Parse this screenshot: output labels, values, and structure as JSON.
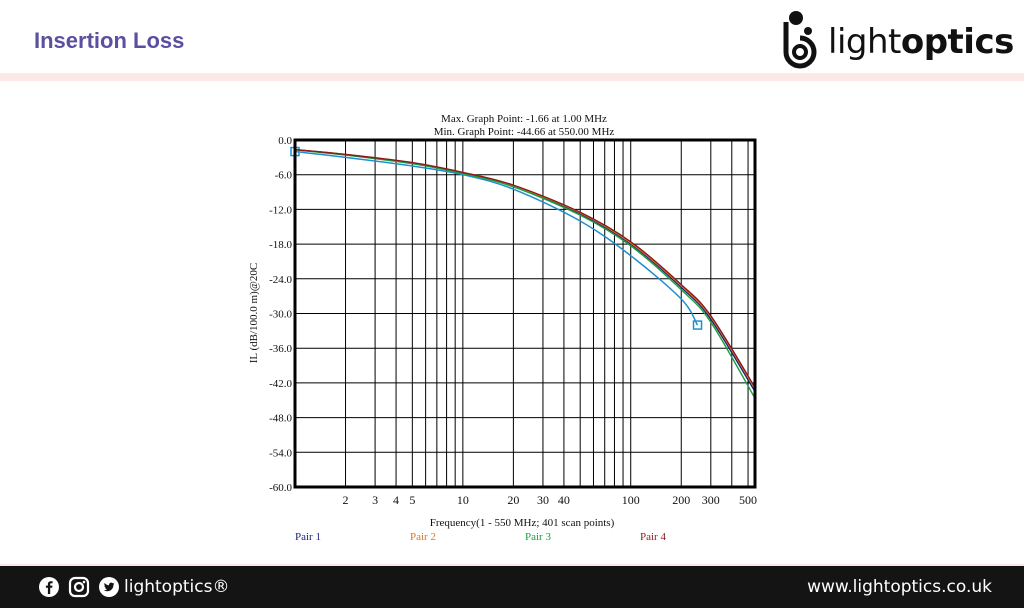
{
  "header": {
    "title": "Insertion Loss",
    "logo_text_light": "light",
    "logo_text_bold": "optics",
    "accent_color": "#5a4fa0"
  },
  "footer": {
    "brand": "lightoptics®",
    "url": "www.lightoptics.co.uk",
    "icons": [
      "facebook-icon",
      "instagram-icon",
      "twitter-icon"
    ]
  },
  "chart_data": {
    "type": "line",
    "x_scale": "log",
    "max_point_text": "Max. Graph Point: -1.66 at 1.00 MHz",
    "min_point_text": "Min. Graph Point: -44.66 at 550.00 MHz",
    "xlabel": "Frequency(1 - 550 MHz; 401 scan points)",
    "ylabel": "IL (dB/100.0 m)@20C",
    "xlim": [
      1,
      550
    ],
    "ylim": [
      -60,
      0
    ],
    "y_ticks": [
      "0.0",
      "-6.0",
      "-12.0",
      "-18.0",
      "-24.0",
      "-30.0",
      "-36.0",
      "-42.0",
      "-48.0",
      "-54.0",
      "-60.0"
    ],
    "x_ticks": [
      {
        "value": 2,
        "label": "2"
      },
      {
        "value": 3,
        "label": "3"
      },
      {
        "value": 4,
        "label": "4"
      },
      {
        "value": 5,
        "label": "5"
      },
      {
        "value": 10,
        "label": "10"
      },
      {
        "value": 20,
        "label": "20"
      },
      {
        "value": 30,
        "label": "30"
      },
      {
        "value": 40,
        "label": "40"
      },
      {
        "value": 100,
        "label": "100"
      },
      {
        "value": 200,
        "label": "200"
      },
      {
        "value": 300,
        "label": "300"
      },
      {
        "value": 500,
        "label": "500"
      }
    ],
    "grid": true,
    "legend_position": "bottom",
    "limit_line": {
      "color": "#1e90d0",
      "x": [
        1,
        2,
        5,
        10,
        20,
        50,
        100,
        200,
        250
      ],
      "y": [
        -2.0,
        -3.0,
        -4.5,
        -6.0,
        -8.5,
        -14.0,
        -20.0,
        -27.5,
        -32.0
      ]
    },
    "series": [
      {
        "name": "Pair 1",
        "color": "#1a237e",
        "x": [
          1,
          2,
          5,
          10,
          20,
          50,
          100,
          200,
          300,
          550
        ],
        "y": [
          -1.66,
          -2.5,
          -4.0,
          -5.7,
          -8.0,
          -12.8,
          -18.0,
          -25.5,
          -31.0,
          -43.5
        ]
      },
      {
        "name": "Pair 2",
        "color": "#e07820",
        "x": [
          1,
          2,
          5,
          10,
          20,
          50,
          100,
          200,
          300,
          550
        ],
        "y": [
          -1.7,
          -2.5,
          -4.0,
          -5.6,
          -7.9,
          -12.6,
          -17.8,
          -25.2,
          -30.6,
          -43.0
        ]
      },
      {
        "name": "Pair 3",
        "color": "#1b9e3e",
        "x": [
          1,
          2,
          5,
          10,
          20,
          50,
          100,
          200,
          300,
          550
        ],
        "y": [
          -1.7,
          -2.6,
          -4.1,
          -5.8,
          -8.1,
          -13.0,
          -18.3,
          -25.9,
          -31.5,
          -44.66
        ]
      },
      {
        "name": "Pair 4",
        "color": "#8b1a1a",
        "x": [
          1,
          2,
          5,
          10,
          20,
          50,
          100,
          200,
          300,
          550
        ],
        "y": [
          -1.65,
          -2.5,
          -3.9,
          -5.6,
          -7.8,
          -12.5,
          -17.6,
          -25.0,
          -30.4,
          -42.8
        ]
      }
    ]
  }
}
